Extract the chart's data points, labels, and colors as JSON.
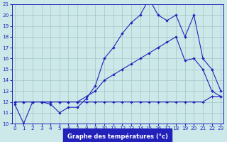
{
  "xlabel": "Graphe des températures (°c)",
  "background_color": "#cce8e8",
  "grid_color": "#aacccc",
  "line_color": "#2222bb",
  "x_hours": [
    0,
    1,
    2,
    3,
    4,
    5,
    6,
    7,
    8,
    9,
    10,
    11,
    12,
    13,
    14,
    15,
    16,
    17,
    18,
    19,
    20,
    21,
    22,
    23
  ],
  "series1": [
    11.8,
    10.0,
    12.0,
    12.0,
    11.8,
    11.0,
    11.5,
    11.5,
    12.3,
    13.5,
    16.0,
    17.0,
    18.3,
    19.3,
    20.0,
    21.5,
    20.0,
    19.5,
    20.0,
    18.0,
    20.0,
    16.0,
    15.0,
    13.0
  ],
  "series2": [
    12.0,
    12.0,
    12.0,
    12.0,
    12.0,
    12.0,
    12.0,
    12.0,
    12.0,
    12.0,
    12.0,
    12.0,
    12.0,
    12.0,
    12.0,
    12.0,
    12.0,
    12.0,
    12.0,
    12.0,
    12.0,
    12.0,
    12.5,
    12.5
  ],
  "series3": [
    12.0,
    12.0,
    12.0,
    12.0,
    12.0,
    12.0,
    12.0,
    12.0,
    12.5,
    13.0,
    14.0,
    14.5,
    15.0,
    15.5,
    16.0,
    16.5,
    17.0,
    17.5,
    18.0,
    15.8,
    16.0,
    15.0,
    13.0,
    12.5
  ],
  "ylim": [
    10,
    21
  ],
  "yticks": [
    10,
    11,
    12,
    13,
    14,
    15,
    16,
    17,
    18,
    19,
    20,
    21
  ],
  "xticks": [
    0,
    1,
    2,
    3,
    4,
    5,
    6,
    7,
    8,
    9,
    10,
    11,
    12,
    13,
    14,
    15,
    16,
    17,
    18,
    19,
    20,
    21,
    22,
    23
  ]
}
